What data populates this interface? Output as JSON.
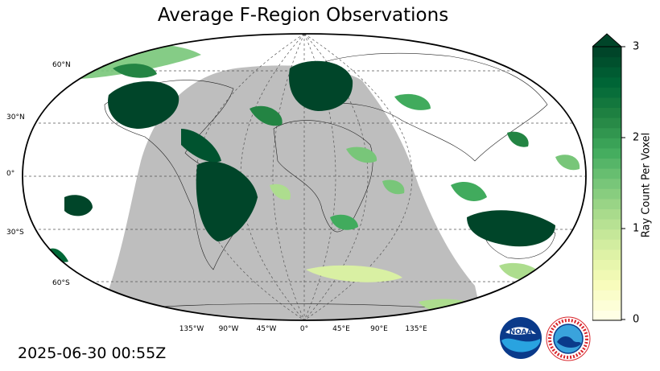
{
  "title": "Average F-Region Observations",
  "timestamp": "2025-06-30 00:55Z",
  "lat_labels": [
    "60°N",
    "30°N",
    "0°",
    "30°S",
    "60°S"
  ],
  "lon_labels": [
    "135°W",
    "90°W",
    "45°W",
    "0°",
    "45°E",
    "90°E",
    "135°E"
  ],
  "colorbar": {
    "label": "Ray Count Per Voxel",
    "ticks": [
      "0",
      "1",
      "2",
      "3"
    ],
    "min": 0,
    "max": 3,
    "extend": "max",
    "colors": [
      "#ffffe5",
      "#f7fcb9",
      "#d9f0a3",
      "#addd8e",
      "#78c679",
      "#41ab5d",
      "#238443",
      "#006837",
      "#004529"
    ]
  },
  "night_shade_color": "#bebebe",
  "logos": {
    "noaa_text": "NOAA",
    "nws_text": "NATIONAL WEATHER SERVICE"
  }
}
